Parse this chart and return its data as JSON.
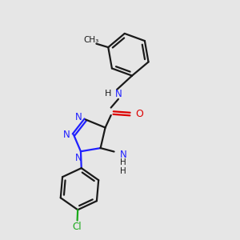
{
  "background_color": "#e6e6e6",
  "bond_color": "#1a1a1a",
  "nitrogen_color": "#2020ff",
  "oxygen_color": "#dd0000",
  "chlorine_color": "#1aaa1a",
  "figsize": [
    3.0,
    3.0
  ],
  "dpi": 100,
  "xlim": [
    0,
    10
  ],
  "ylim": [
    0,
    10
  ]
}
